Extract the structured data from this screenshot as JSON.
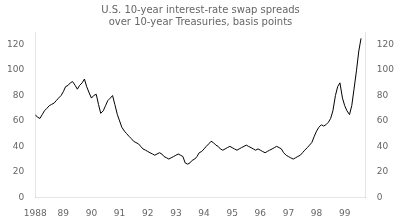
{
  "chart_data": {
    "type": "line",
    "title": "U.S. 10-year interest-rate swap spreads\nover 10-year Treasuries, basis points",
    "color": "#000000",
    "grid": false,
    "x": [
      1988.0,
      1988.08,
      1988.17,
      1988.25,
      1988.33,
      1988.42,
      1988.5,
      1988.58,
      1988.67,
      1988.75,
      1988.83,
      1988.92,
      1989.0,
      1989.08,
      1989.17,
      1989.25,
      1989.33,
      1989.42,
      1989.5,
      1989.58,
      1989.67,
      1989.75,
      1989.83,
      1989.92,
      1990.0,
      1990.08,
      1990.17,
      1990.25,
      1990.33,
      1990.42,
      1990.5,
      1990.58,
      1990.67,
      1990.75,
      1990.83,
      1990.92,
      1991.0,
      1991.08,
      1991.17,
      1991.25,
      1991.33,
      1991.42,
      1991.5,
      1991.58,
      1991.67,
      1991.75,
      1991.83,
      1991.92,
      1992.0,
      1992.08,
      1992.17,
      1992.25,
      1992.33,
      1992.42,
      1992.5,
      1992.58,
      1992.67,
      1992.75,
      1992.83,
      1992.92,
      1993.0,
      1993.08,
      1993.17,
      1993.25,
      1993.33,
      1993.42,
      1993.5,
      1993.58,
      1993.67,
      1993.75,
      1993.83,
      1993.92,
      1994.0,
      1994.08,
      1994.17,
      1994.25,
      1994.33,
      1994.42,
      1994.5,
      1994.58,
      1994.67,
      1994.75,
      1994.83,
      1994.92,
      1995.0,
      1995.08,
      1995.17,
      1995.25,
      1995.33,
      1995.42,
      1995.5,
      1995.58,
      1995.67,
      1995.75,
      1995.83,
      1995.92,
      1996.0,
      1996.08,
      1996.17,
      1996.25,
      1996.33,
      1996.42,
      1996.5,
      1996.58,
      1996.67,
      1996.75,
      1996.83,
      1996.92,
      1997.0,
      1997.08,
      1997.17,
      1997.25,
      1997.33,
      1997.42,
      1997.5,
      1997.58,
      1997.67,
      1997.75,
      1997.83,
      1997.92,
      1998.0,
      1998.08,
      1998.17,
      1998.25,
      1998.33,
      1998.42,
      1998.5,
      1998.58,
      1998.67,
      1998.75,
      1998.83,
      1998.92,
      1999.0,
      1999.08,
      1999.17,
      1999.25,
      1999.33,
      1999.42,
      1999.5,
      1999.58
    ],
    "values": [
      65,
      63,
      62,
      65,
      68,
      70,
      72,
      73,
      74,
      76,
      78,
      80,
      83,
      87,
      88,
      90,
      91,
      88,
      85,
      88,
      90,
      93,
      87,
      82,
      78,
      80,
      81,
      73,
      66,
      68,
      72,
      76,
      78,
      80,
      73,
      65,
      60,
      55,
      52,
      50,
      48,
      46,
      44,
      43,
      42,
      40,
      38,
      37,
      36,
      35,
      34,
      33,
      34,
      35,
      34,
      32,
      31,
      30,
      31,
      32,
      33,
      34,
      33,
      32,
      27,
      26,
      27,
      29,
      30,
      32,
      35,
      36,
      38,
      40,
      42,
      44,
      43,
      41,
      40,
      38,
      37,
      38,
      39,
      40,
      39,
      38,
      37,
      38,
      39,
      40,
      41,
      40,
      39,
      38,
      37,
      38,
      37,
      36,
      35,
      36,
      37,
      38,
      39,
      40,
      39,
      38,
      35,
      33,
      32,
      31,
      30,
      31,
      32,
      33,
      35,
      37,
      39,
      41,
      43,
      48,
      52,
      55,
      57,
      56,
      57,
      59,
      62,
      68,
      80,
      87,
      90,
      78,
      72,
      68,
      65,
      72,
      85,
      100,
      115,
      125
    ],
    "xlim": [
      1988.0,
      1999.75
    ],
    "xticks": [
      1988,
      {
        "value": 1989,
        "label": "89"
      },
      {
        "value": 1990,
        "label": "90"
      },
      {
        "value": 1991,
        "label": "91"
      },
      {
        "value": 1992,
        "label": "92"
      },
      {
        "value": 1993,
        "label": "93"
      },
      {
        "value": 1994,
        "label": "94"
      },
      {
        "value": 1995,
        "label": "95"
      },
      {
        "value": 1996,
        "label": "96"
      },
      {
        "value": 1997,
        "label": "97"
      },
      {
        "value": 1998,
        "label": "98"
      },
      {
        "value": 1999,
        "label": "99"
      }
    ],
    "ylim": [
      0,
      130
    ],
    "yticks": [
      0,
      20,
      40,
      60,
      80,
      100,
      120
    ],
    "y2lim": [
      0,
      130
    ],
    "y2ticks": [
      0,
      20,
      40,
      60,
      80,
      100,
      120
    ]
  }
}
